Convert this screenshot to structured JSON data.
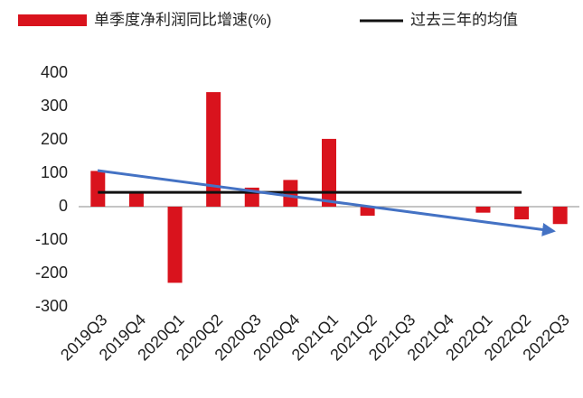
{
  "chart_data": {
    "type": "bar",
    "categories": [
      "2019Q3",
      "2019Q4",
      "2020Q1",
      "2020Q2",
      "2020Q3",
      "2020Q4",
      "2021Q1",
      "2021Q2",
      "2021Q3",
      "2021Q4",
      "2022Q1",
      "2022Q2",
      "2022Q3"
    ],
    "series": [
      {
        "name": "单季度净利润同比增速(%)",
        "color": "#d9131d",
        "type": "bar",
        "values": [
          107,
          40,
          -228,
          343,
          57,
          80,
          203,
          -27,
          null,
          null,
          -18,
          -38,
          -52
        ]
      },
      {
        "name": "过去三年的均值",
        "color": "#111111",
        "type": "line",
        "values": [
          43,
          43,
          43,
          43,
          43,
          43,
          43,
          43,
          43,
          43,
          43,
          43,
          null
        ]
      }
    ],
    "ylim": [
      -300,
      400
    ],
    "yticks": [
      -300,
      -200,
      -100,
      0,
      100,
      200,
      300,
      400
    ],
    "legend": "top"
  }
}
